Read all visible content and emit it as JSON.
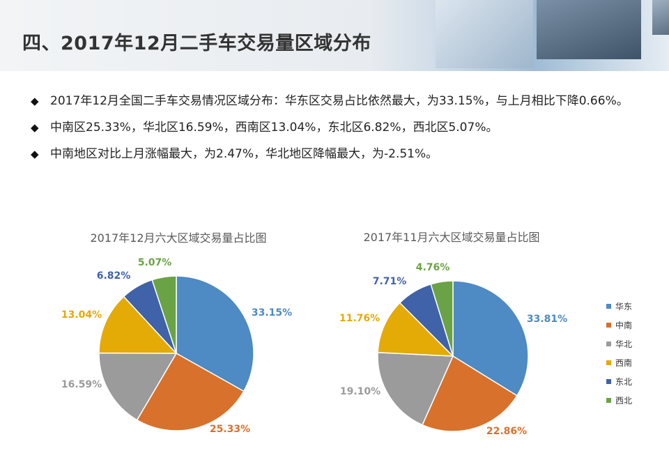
{
  "title": "四、2017年12月二手车交易量区域分布",
  "bullets": [
    {
      "text": "2017年12月全国二手车交易情况区域分布：华东区交易占比依然最大，为33.15%，与上月相比下降0.66%。"
    },
    {
      "text": "中南区25.33%，华北区16.59%，西南区13.04%，东北区6.82%，西北区5.07%。"
    },
    {
      "text": "中南地区对比上月涨幅最大，为2.47%，华北地区降幅最大，为-2.51%。"
    }
  ],
  "colors": [
    "#4e8ac3",
    "#d8712c",
    "#9b9b9b",
    "#e4aa06",
    "#3f62a8",
    "#6aa345"
  ],
  "legend_colors": [
    "#4e8ac3",
    "#d8712c",
    "#9b9b9b",
    "#e4aa06",
    "#3f62a8",
    "#6aa345"
  ],
  "chart_data": [
    {
      "type": "pie",
      "title": "2017年12月六大区域交易量占比图",
      "categories": [
        "华东",
        "中南",
        "华北",
        "西南",
        "东北",
        "西北"
      ],
      "values": [
        33.15,
        25.33,
        16.59,
        13.04,
        6.82,
        5.07
      ],
      "labels": [
        "33.15%",
        "25.33%",
        "16.59%",
        "13.04%",
        "6.82%",
        "5.07%"
      ]
    },
    {
      "type": "pie",
      "title": "2017年11月六大区域交易量占比图",
      "categories": [
        "华东",
        "中南",
        "华北",
        "西南",
        "东北",
        "西北"
      ],
      "values": [
        33.81,
        22.86,
        19.1,
        11.76,
        7.71,
        4.76
      ],
      "labels": [
        "33.81%",
        "22.86%",
        "19.10%",
        "11.76%",
        "7.71%",
        "4.76%"
      ],
      "legend": [
        "华东",
        "中南",
        "华北",
        "西南",
        "东北",
        "西北"
      ],
      "legend_position": "right"
    }
  ]
}
